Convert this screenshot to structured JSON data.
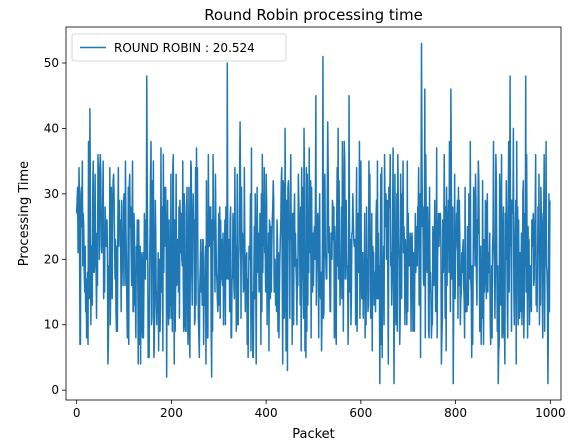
{
  "chart_data": {
    "type": "line",
    "title": "Round Robin processing time",
    "xlabel": "Packet",
    "ylabel": "Processing Time",
    "xlim": [
      -22.5,
      1022.5
    ],
    "ylim": [
      -1.5,
      55.5
    ],
    "xticks": [
      0,
      200,
      400,
      600,
      800,
      1000
    ],
    "yticks": [
      0,
      10,
      20,
      30,
      40,
      50
    ],
    "grid": false,
    "legend": {
      "placement": "upper-left"
    },
    "series": [
      {
        "name": "ROUND ROBIN : 20.524",
        "color": "#1f77b4",
        "n_points": 1000,
        "seed": 20524,
        "mean": 20.524,
        "min": 1,
        "max": 53,
        "peaks": [
          {
            "x": 5,
            "y": 34
          },
          {
            "x": 25,
            "y": 38
          },
          {
            "x": 28,
            "y": 43
          },
          {
            "x": 55,
            "y": 29
          },
          {
            "x": 70,
            "y": 34
          },
          {
            "x": 118,
            "y": 35
          },
          {
            "x": 148,
            "y": 48
          },
          {
            "x": 178,
            "y": 37
          },
          {
            "x": 318,
            "y": 50
          },
          {
            "x": 345,
            "y": 41
          },
          {
            "x": 440,
            "y": 40
          },
          {
            "x": 445,
            "y": 46
          },
          {
            "x": 480,
            "y": 40
          },
          {
            "x": 505,
            "y": 45
          },
          {
            "x": 520,
            "y": 51
          },
          {
            "x": 530,
            "y": 41
          },
          {
            "x": 552,
            "y": 40
          },
          {
            "x": 575,
            "y": 45
          },
          {
            "x": 600,
            "y": 35
          },
          {
            "x": 650,
            "y": 36
          },
          {
            "x": 728,
            "y": 53
          },
          {
            "x": 735,
            "y": 46
          },
          {
            "x": 760,
            "y": 37
          },
          {
            "x": 790,
            "y": 46
          },
          {
            "x": 880,
            "y": 38
          },
          {
            "x": 915,
            "y": 48
          },
          {
            "x": 922,
            "y": 40
          },
          {
            "x": 948,
            "y": 48
          },
          {
            "x": 980,
            "y": 31
          }
        ],
        "troughs": [
          {
            "x": 8,
            "y": 7
          },
          {
            "x": 130,
            "y": 4
          },
          {
            "x": 190,
            "y": 2
          },
          {
            "x": 285,
            "y": 2
          },
          {
            "x": 445,
            "y": 3
          },
          {
            "x": 640,
            "y": 1
          },
          {
            "x": 670,
            "y": 1
          },
          {
            "x": 795,
            "y": 1
          },
          {
            "x": 890,
            "y": 1
          },
          {
            "x": 995,
            "y": 1
          }
        ]
      }
    ]
  }
}
